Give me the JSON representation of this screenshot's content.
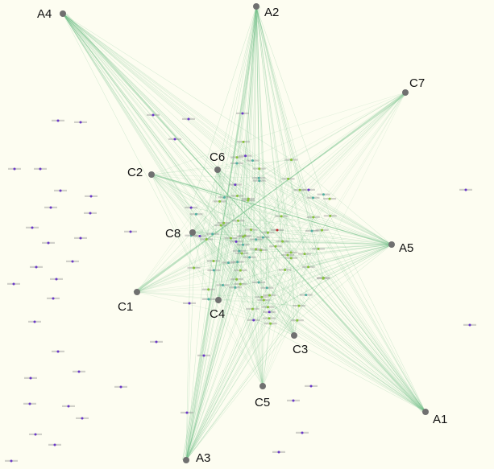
{
  "colors": {
    "background": "#fdfdf1",
    "edge": "#74c08a",
    "hub_node": "#707070",
    "term_green": "#86c43a",
    "term_teal": "#4fb0a0",
    "term_purple": "#6a38c8",
    "term_red": "#c03030",
    "label": "#111111"
  },
  "hubs": [
    {
      "id": "A4",
      "label": "A4"
    },
    {
      "id": "A2",
      "label": "A2"
    },
    {
      "id": "C7",
      "label": "C7"
    },
    {
      "id": "C6",
      "label": "C6"
    },
    {
      "id": "C2",
      "label": "C2"
    },
    {
      "id": "C8",
      "label": "C8"
    },
    {
      "id": "A5",
      "label": "A5"
    },
    {
      "id": "C1",
      "label": "C1"
    },
    {
      "id": "C4",
      "label": "C4"
    },
    {
      "id": "C3",
      "label": "C3"
    },
    {
      "id": "C5",
      "label": "C5"
    },
    {
      "id": "A1",
      "label": "A1"
    },
    {
      "id": "A3",
      "label": "A3"
    }
  ]
}
